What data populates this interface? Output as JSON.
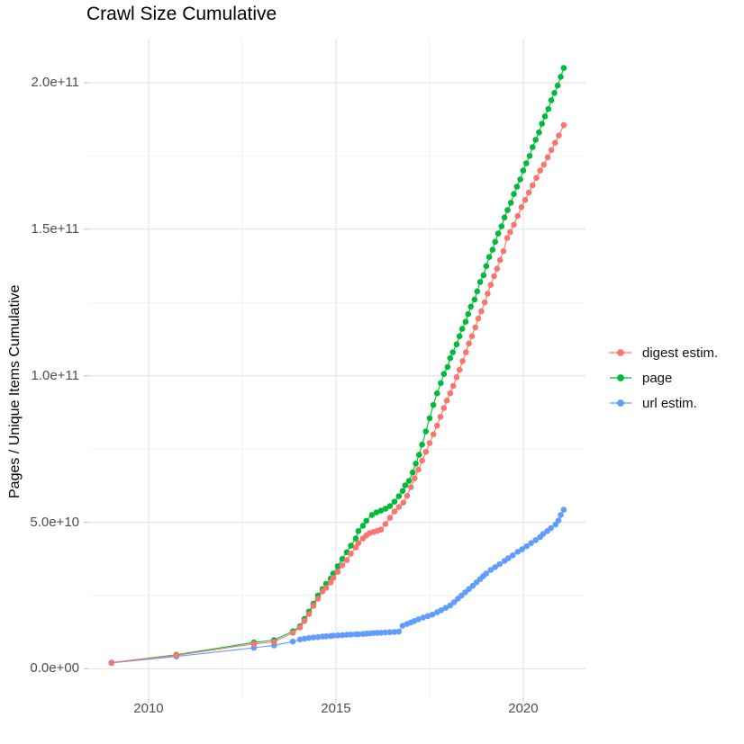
{
  "chart_data": {
    "type": "scatter",
    "title": "Crawl Size Cumulative",
    "xlabel": "",
    "ylabel": "Pages / Unique Items Cumulative",
    "legend_position": "right",
    "grid": true,
    "xlim": [
      2008.39,
      2021.66
    ],
    "ylim_e10": [
      -1.0,
      21.5
    ],
    "x_ticks": [
      {
        "label": "2010",
        "year": 2010
      },
      {
        "label": "2015",
        "year": 2015
      },
      {
        "label": "2020",
        "year": 2020
      }
    ],
    "x_minor": [
      2012.5,
      2017.5
    ],
    "y_ticks": [
      {
        "label": "0.0e+00",
        "value_e10": 0
      },
      {
        "label": "5.0e+10",
        "value_e10": 5
      },
      {
        "label": "1.0e+11",
        "value_e10": 10
      },
      {
        "label": "1.5e+11",
        "value_e10": 15
      },
      {
        "label": "2.0e+11",
        "value_e10": 20
      }
    ],
    "y_minor": [
      2.5,
      7.5,
      12.5,
      17.5
    ],
    "value_unit_note": "point values below are in units of 1e10 pages/items",
    "series": [
      {
        "name": "digest estim.",
        "color": "#F8766D",
        "points": [
          [
            2009.01,
            0.21
          ],
          [
            2010.74,
            0.46
          ],
          [
            2012.81,
            0.85
          ],
          [
            2013.35,
            0.92
          ],
          [
            2013.85,
            1.23
          ],
          [
            2014.04,
            1.41
          ],
          [
            2014.16,
            1.63
          ],
          [
            2014.28,
            1.87
          ],
          [
            2014.4,
            2.15
          ],
          [
            2014.52,
            2.39
          ],
          [
            2014.64,
            2.64
          ],
          [
            2014.74,
            2.76
          ],
          [
            2014.86,
            2.94
          ],
          [
            2014.93,
            3.1
          ],
          [
            2015.05,
            3.31
          ],
          [
            2015.17,
            3.53
          ],
          [
            2015.29,
            3.71
          ],
          [
            2015.4,
            3.93
          ],
          [
            2015.53,
            4.14
          ],
          [
            2015.6,
            4.29
          ],
          [
            2015.72,
            4.45
          ],
          [
            2015.81,
            4.55
          ],
          [
            2015.9,
            4.63
          ],
          [
            2016.0,
            4.67
          ],
          [
            2016.1,
            4.71
          ],
          [
            2016.2,
            4.75
          ],
          [
            2016.32,
            4.94
          ],
          [
            2016.44,
            5.15
          ],
          [
            2016.56,
            5.37
          ],
          [
            2016.68,
            5.52
          ],
          [
            2016.8,
            5.67
          ],
          [
            2016.9,
            5.9
          ],
          [
            2017.0,
            6.2
          ],
          [
            2017.1,
            6.5
          ],
          [
            2017.2,
            6.8
          ],
          [
            2017.3,
            7.1
          ],
          [
            2017.4,
            7.4
          ],
          [
            2017.5,
            7.7
          ],
          [
            2017.6,
            8.0
          ],
          [
            2017.7,
            8.3
          ],
          [
            2017.79,
            8.6
          ],
          [
            2017.88,
            8.9
          ],
          [
            2017.96,
            9.15
          ],
          [
            2018.05,
            9.4
          ],
          [
            2018.13,
            9.65
          ],
          [
            2018.22,
            9.95
          ],
          [
            2018.3,
            10.2
          ],
          [
            2018.38,
            10.5
          ],
          [
            2018.47,
            10.8
          ],
          [
            2018.55,
            11.1
          ],
          [
            2018.63,
            11.35
          ],
          [
            2018.72,
            11.65
          ],
          [
            2018.8,
            11.95
          ],
          [
            2018.88,
            12.2
          ],
          [
            2018.97,
            12.5
          ],
          [
            2019.05,
            12.8
          ],
          [
            2019.13,
            13.1
          ],
          [
            2019.22,
            13.4
          ],
          [
            2019.3,
            13.65
          ],
          [
            2019.38,
            13.95
          ],
          [
            2019.47,
            14.25
          ],
          [
            2019.57,
            14.7
          ],
          [
            2019.65,
            14.9
          ],
          [
            2019.75,
            15.15
          ],
          [
            2019.85,
            15.45
          ],
          [
            2019.95,
            15.75
          ],
          [
            2020.05,
            16.0
          ],
          [
            2020.15,
            16.25
          ],
          [
            2020.25,
            16.5
          ],
          [
            2020.35,
            16.75
          ],
          [
            2020.45,
            17.0
          ],
          [
            2020.55,
            17.2
          ],
          [
            2020.65,
            17.45
          ],
          [
            2020.75,
            17.7
          ],
          [
            2020.85,
            17.95
          ],
          [
            2020.95,
            18.2
          ],
          [
            2021.08,
            18.55
          ]
        ]
      },
      {
        "name": "page",
        "color": "#00BA38",
        "points": [
          [
            2009.01,
            0.21
          ],
          [
            2010.74,
            0.48
          ],
          [
            2012.81,
            0.9
          ],
          [
            2013.35,
            0.98
          ],
          [
            2013.85,
            1.28
          ],
          [
            2014.04,
            1.45
          ],
          [
            2014.16,
            1.7
          ],
          [
            2014.28,
            1.95
          ],
          [
            2014.4,
            2.22
          ],
          [
            2014.52,
            2.5
          ],
          [
            2014.64,
            2.72
          ],
          [
            2014.74,
            2.9
          ],
          [
            2014.86,
            3.08
          ],
          [
            2014.93,
            3.25
          ],
          [
            2015.05,
            3.5
          ],
          [
            2015.17,
            3.75
          ],
          [
            2015.29,
            3.98
          ],
          [
            2015.4,
            4.2
          ],
          [
            2015.53,
            4.45
          ],
          [
            2015.6,
            4.7
          ],
          [
            2015.72,
            4.88
          ],
          [
            2015.81,
            5.05
          ],
          [
            2015.96,
            5.25
          ],
          [
            2016.08,
            5.34
          ],
          [
            2016.2,
            5.4
          ],
          [
            2016.32,
            5.46
          ],
          [
            2016.44,
            5.55
          ],
          [
            2016.56,
            5.7
          ],
          [
            2016.68,
            5.89
          ],
          [
            2016.78,
            6.07
          ],
          [
            2016.85,
            6.26
          ],
          [
            2016.95,
            6.41
          ],
          [
            2017.05,
            6.7
          ],
          [
            2017.13,
            7.0
          ],
          [
            2017.22,
            7.3
          ],
          [
            2017.3,
            7.65
          ],
          [
            2017.4,
            8.1
          ],
          [
            2017.5,
            8.55
          ],
          [
            2017.6,
            9.0
          ],
          [
            2017.7,
            9.4
          ],
          [
            2017.8,
            9.75
          ],
          [
            2017.88,
            10.06
          ],
          [
            2017.98,
            10.3
          ],
          [
            2018.05,
            10.6
          ],
          [
            2018.12,
            10.8
          ],
          [
            2018.22,
            11.07
          ],
          [
            2018.3,
            11.35
          ],
          [
            2018.37,
            11.6
          ],
          [
            2018.46,
            11.84
          ],
          [
            2018.53,
            12.1
          ],
          [
            2018.6,
            12.36
          ],
          [
            2018.7,
            12.6
          ],
          [
            2018.77,
            12.88
          ],
          [
            2018.85,
            13.2
          ],
          [
            2018.94,
            13.43
          ],
          [
            2019.01,
            13.74
          ],
          [
            2019.09,
            14.05
          ],
          [
            2019.18,
            14.3
          ],
          [
            2019.25,
            14.57
          ],
          [
            2019.33,
            14.85
          ],
          [
            2019.42,
            15.1
          ],
          [
            2019.5,
            15.4
          ],
          [
            2019.58,
            15.65
          ],
          [
            2019.67,
            15.9
          ],
          [
            2019.75,
            16.2
          ],
          [
            2019.83,
            16.45
          ],
          [
            2019.92,
            16.7
          ],
          [
            2020.0,
            17.0
          ],
          [
            2020.08,
            17.25
          ],
          [
            2020.17,
            17.5
          ],
          [
            2020.25,
            17.8
          ],
          [
            2020.33,
            18.05
          ],
          [
            2020.42,
            18.3
          ],
          [
            2020.5,
            18.6
          ],
          [
            2020.58,
            18.85
          ],
          [
            2020.67,
            19.1
          ],
          [
            2020.75,
            19.4
          ],
          [
            2020.83,
            19.65
          ],
          [
            2020.92,
            19.9
          ],
          [
            2021.0,
            20.2
          ],
          [
            2021.08,
            20.5
          ]
        ]
      },
      {
        "name": "url estim.",
        "color": "#619CFF",
        "points": [
          [
            2009.01,
            0.2
          ],
          [
            2010.74,
            0.42
          ],
          [
            2012.81,
            0.72
          ],
          [
            2013.35,
            0.8
          ],
          [
            2013.85,
            0.93
          ],
          [
            2014.04,
            1.0
          ],
          [
            2014.16,
            1.03
          ],
          [
            2014.28,
            1.05
          ],
          [
            2014.4,
            1.07
          ],
          [
            2014.52,
            1.08
          ],
          [
            2014.64,
            1.1
          ],
          [
            2014.74,
            1.11
          ],
          [
            2014.86,
            1.12
          ],
          [
            2014.93,
            1.13
          ],
          [
            2015.05,
            1.14
          ],
          [
            2015.17,
            1.15
          ],
          [
            2015.29,
            1.16
          ],
          [
            2015.4,
            1.17
          ],
          [
            2015.53,
            1.18
          ],
          [
            2015.6,
            1.18
          ],
          [
            2015.72,
            1.19
          ],
          [
            2015.81,
            1.2
          ],
          [
            2015.9,
            1.21
          ],
          [
            2016.0,
            1.22
          ],
          [
            2016.1,
            1.23
          ],
          [
            2016.2,
            1.23
          ],
          [
            2016.32,
            1.24
          ],
          [
            2016.44,
            1.25
          ],
          [
            2016.56,
            1.26
          ],
          [
            2016.68,
            1.27
          ],
          [
            2016.78,
            1.47
          ],
          [
            2016.9,
            1.53
          ],
          [
            2017.0,
            1.58
          ],
          [
            2017.09,
            1.63
          ],
          [
            2017.2,
            1.69
          ],
          [
            2017.33,
            1.75
          ],
          [
            2017.45,
            1.8
          ],
          [
            2017.57,
            1.85
          ],
          [
            2017.7,
            1.93
          ],
          [
            2017.81,
            2.0
          ],
          [
            2017.93,
            2.08
          ],
          [
            2018.05,
            2.16
          ],
          [
            2018.15,
            2.27
          ],
          [
            2018.25,
            2.39
          ],
          [
            2018.35,
            2.5
          ],
          [
            2018.45,
            2.61
          ],
          [
            2018.55,
            2.72
          ],
          [
            2018.65,
            2.83
          ],
          [
            2018.75,
            2.95
          ],
          [
            2018.85,
            3.06
          ],
          [
            2018.93,
            3.16
          ],
          [
            2019.01,
            3.25
          ],
          [
            2019.13,
            3.37
          ],
          [
            2019.25,
            3.47
          ],
          [
            2019.37,
            3.57
          ],
          [
            2019.5,
            3.68
          ],
          [
            2019.6,
            3.77
          ],
          [
            2019.72,
            3.87
          ],
          [
            2019.85,
            3.99
          ],
          [
            2019.97,
            4.08
          ],
          [
            2020.09,
            4.18
          ],
          [
            2020.21,
            4.29
          ],
          [
            2020.33,
            4.39
          ],
          [
            2020.45,
            4.49
          ],
          [
            2020.53,
            4.6
          ],
          [
            2020.64,
            4.7
          ],
          [
            2020.74,
            4.8
          ],
          [
            2020.86,
            4.92
          ],
          [
            2020.94,
            5.06
          ],
          [
            2021.0,
            5.25
          ],
          [
            2021.08,
            5.43
          ]
        ]
      }
    ],
    "colors": {
      "grid_major": "#e4e4e4",
      "grid_minor": "#f0f0f0",
      "tick_mark": "#c9c9c9",
      "tick_text": "#4d4d4d",
      "title_text": "#000000"
    }
  }
}
